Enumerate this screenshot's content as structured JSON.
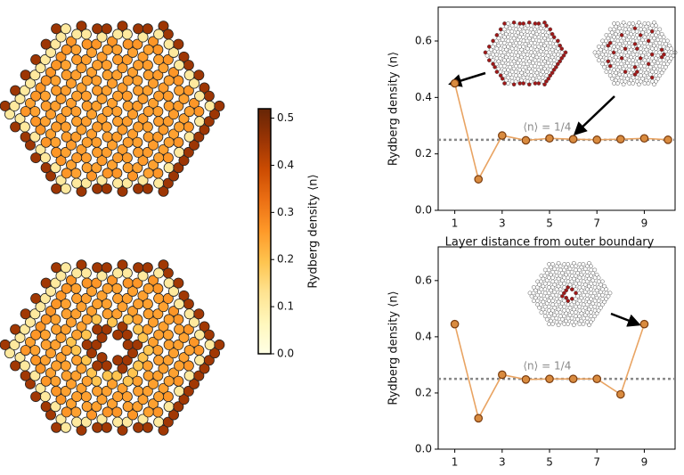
{
  "chart_data": [
    {
      "type": "line",
      "ylabel": "Rydberg density ⟨n⟩",
      "xlabel": "Layer distance from outer boundary",
      "x": [
        1,
        2,
        3,
        4,
        5,
        6,
        7,
        8,
        9,
        10
      ],
      "values": [
        0.45,
        0.11,
        0.265,
        0.248,
        0.255,
        0.252,
        0.25,
        0.252,
        0.255,
        0.25
      ],
      "color": "#e9a463",
      "marker_color": "#d98b3f",
      "xlim": [
        0.3,
        10.3
      ],
      "xticks": [
        1,
        3,
        5,
        7,
        9
      ],
      "ylim": [
        0,
        0.72
      ],
      "yticks": [
        {
          "value": 0,
          "label": "0.0"
        },
        0.2,
        0.4,
        0.6
      ],
      "reference_line": 0.25,
      "annotation": "⟨n⟩ = 1/4"
    },
    {
      "type": "line",
      "ylabel": "Rydberg density ⟨n⟩",
      "x": [
        1,
        2,
        3,
        4,
        5,
        6,
        7,
        8,
        9
      ],
      "values": [
        0.445,
        0.11,
        0.265,
        0.248,
        0.25,
        0.25,
        0.25,
        0.195,
        0.445
      ],
      "color": "#e9a463",
      "marker_color": "#d98b3f",
      "xlim": [
        0.3,
        10.3
      ],
      "xticks": [
        1,
        3,
        5,
        7,
        9
      ],
      "ylim": [
        0,
        0.72
      ],
      "yticks": [
        {
          "value": 0,
          "label": "0.0"
        },
        0.2,
        0.4,
        0.6
      ],
      "reference_line": 0.25,
      "annotation": "⟨n⟩ = 1/4"
    },
    {
      "type": "colorbar",
      "label": "Rydberg density ⟨n⟩",
      "colormap": "YlOrBr",
      "ylim": [
        0,
        0.52
      ],
      "yticks": [
        {
          "value": 0,
          "label": "0.0"
        },
        0.1,
        0.2,
        0.3,
        0.4,
        0.5
      ]
    }
  ]
}
